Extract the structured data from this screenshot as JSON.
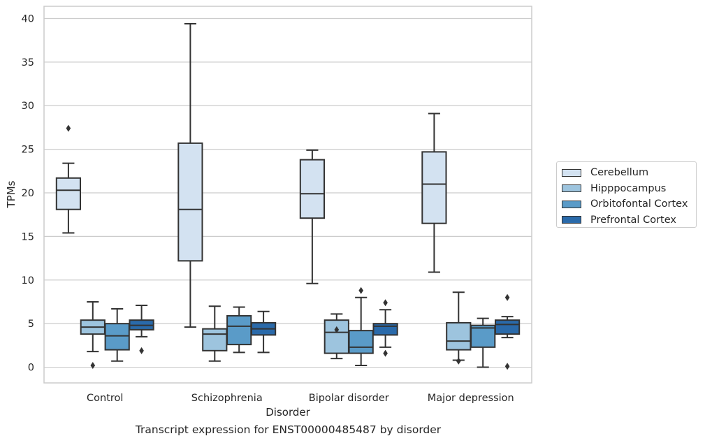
{
  "chart_data": {
    "type": "box",
    "title": "",
    "caption": "Transcript expression for ENST00000485487 by disorder",
    "xlabel": "Disorder",
    "ylabel": "TPMs",
    "ylim": [
      -1.8,
      41.4
    ],
    "yticks": [
      "0",
      "5",
      "10",
      "15",
      "20",
      "25",
      "30",
      "35",
      "40"
    ],
    "grid": true,
    "legend_position": "right",
    "categories": [
      "Control",
      "Schizophrenia",
      "Bipolar disorder",
      "Major depression"
    ],
    "series": [
      {
        "name": "Cerebellum",
        "color": "#d3e2f1",
        "boxes": [
          {
            "whislo": 15.4,
            "q1": 18.1,
            "med": 20.3,
            "q3": 21.7,
            "whishi": 23.4,
            "fliers": [
              27.4
            ]
          },
          {
            "whislo": 4.6,
            "q1": 12.2,
            "med": 18.1,
            "q3": 25.7,
            "whishi": 39.4,
            "fliers": []
          },
          {
            "whislo": 9.6,
            "q1": 17.1,
            "med": 19.9,
            "q3": 23.8,
            "whishi": 24.9,
            "fliers": []
          },
          {
            "whislo": 10.9,
            "q1": 16.5,
            "med": 21.0,
            "q3": 24.7,
            "whishi": 29.1,
            "fliers": []
          }
        ]
      },
      {
        "name": "Hipppocampus",
        "color": "#9dc4de",
        "boxes": [
          {
            "whislo": 1.8,
            "q1": 3.8,
            "med": 4.6,
            "q3": 5.4,
            "whishi": 7.5,
            "fliers": [
              0.2
            ]
          },
          {
            "whislo": 0.7,
            "q1": 1.9,
            "med": 3.8,
            "q3": 4.4,
            "whishi": 7.0,
            "fliers": []
          },
          {
            "whislo": 1.0,
            "q1": 1.6,
            "med": 4.0,
            "q3": 5.4,
            "whishi": 6.1,
            "fliers": [
              4.3
            ]
          },
          {
            "whislo": 0.8,
            "q1": 2.0,
            "med": 3.0,
            "q3": 5.1,
            "whishi": 8.6,
            "fliers": [
              0.7
            ]
          }
        ]
      },
      {
        "name": "Orbitofontal Cortex",
        "color": "#5a9bc8",
        "boxes": [
          {
            "whislo": 0.7,
            "q1": 2.0,
            "med": 3.6,
            "q3": 5.0,
            "whishi": 6.7,
            "fliers": []
          },
          {
            "whislo": 1.7,
            "q1": 2.6,
            "med": 4.7,
            "q3": 5.9,
            "whishi": 6.9,
            "fliers": []
          },
          {
            "whislo": 0.2,
            "q1": 1.6,
            "med": 2.3,
            "q3": 4.2,
            "whishi": 8.0,
            "fliers": [
              8.8
            ]
          },
          {
            "whislo": 0.0,
            "q1": 2.3,
            "med": 4.5,
            "q3": 4.8,
            "whishi": 5.6,
            "fliers": []
          }
        ]
      },
      {
        "name": "Prefrontal Cortex",
        "color": "#2a6aaa",
        "boxes": [
          {
            "whislo": 3.5,
            "q1": 4.3,
            "med": 4.8,
            "q3": 5.4,
            "whishi": 7.1,
            "fliers": [
              1.9
            ]
          },
          {
            "whislo": 1.7,
            "q1": 3.7,
            "med": 4.4,
            "q3": 5.1,
            "whishi": 6.4,
            "fliers": []
          },
          {
            "whislo": 2.3,
            "q1": 3.7,
            "med": 4.7,
            "q3": 5.0,
            "whishi": 6.6,
            "fliers": [
              7.4,
              1.6
            ]
          },
          {
            "whislo": 3.4,
            "q1": 3.8,
            "med": 4.9,
            "q3": 5.4,
            "whishi": 5.8,
            "fliers": [
              8.0,
              0.1
            ]
          }
        ]
      }
    ]
  }
}
